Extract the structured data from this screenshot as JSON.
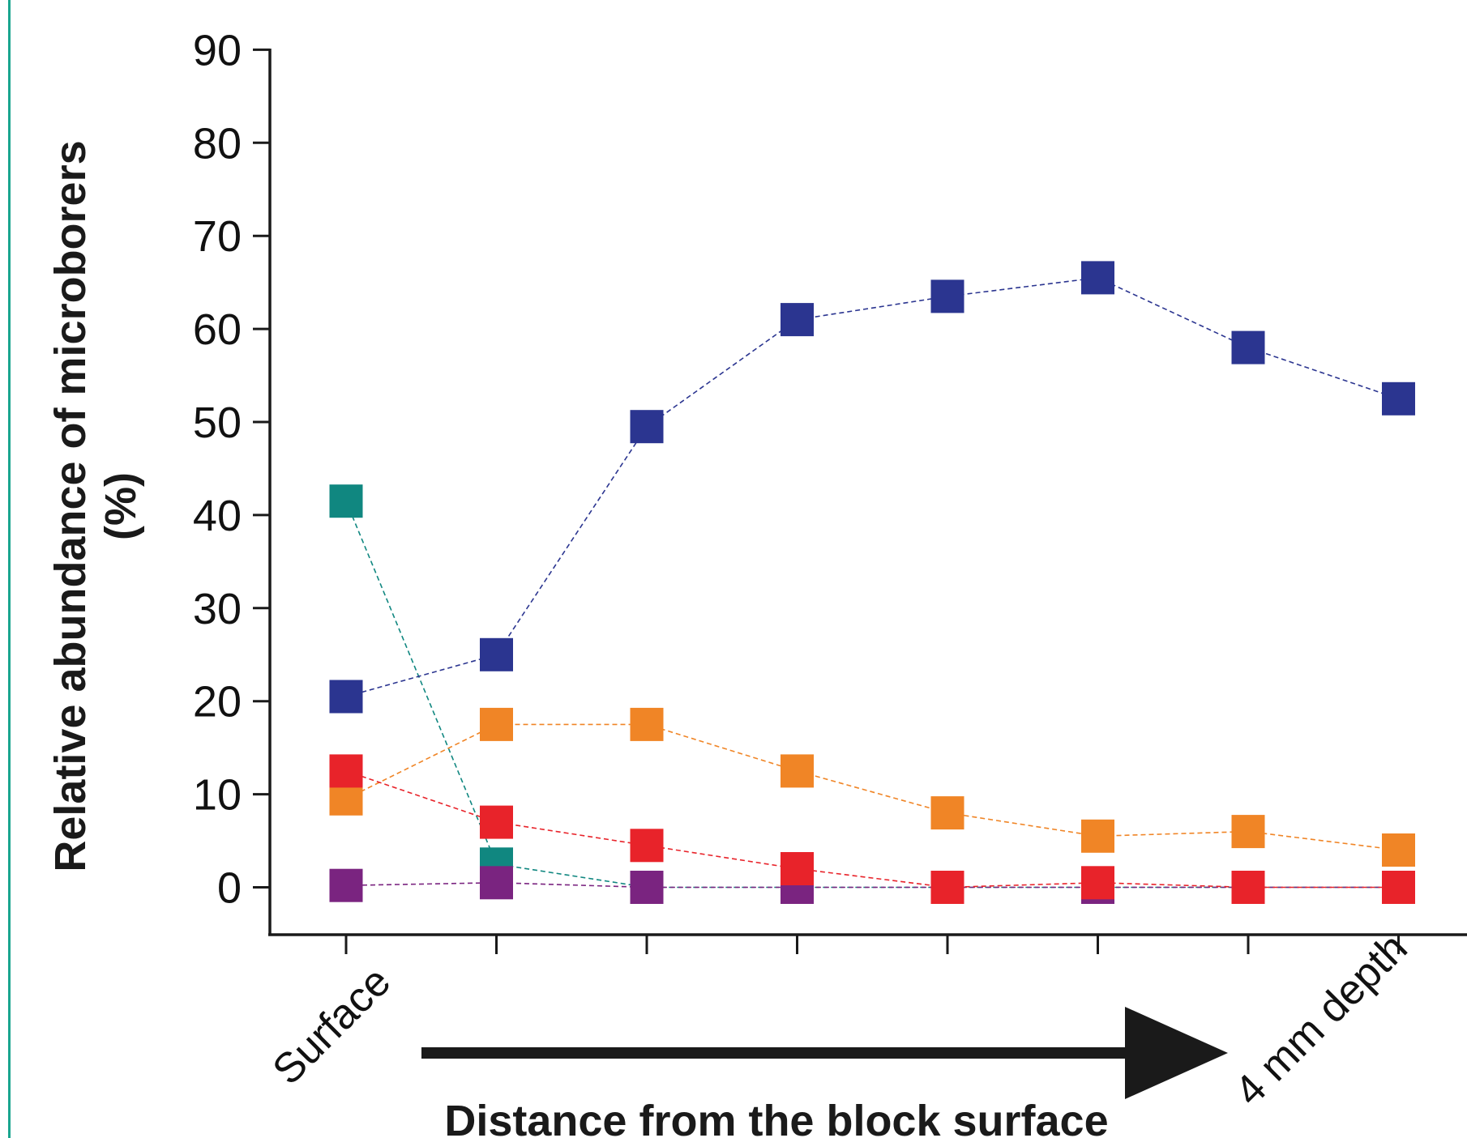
{
  "chart_data": {
    "type": "scatter",
    "x": [
      1,
      2,
      3,
      4,
      5,
      6,
      7,
      8
    ],
    "x_tick_labels": [
      "Surface",
      "",
      "",
      "",
      "",
      "",
      "",
      "4 mm depth"
    ],
    "xlabel": "Distance from the block surface",
    "ylabel": "Relative abundance of microborers (%)",
    "ylim": [
      -5,
      90
    ],
    "yticks": [
      0,
      10,
      20,
      30,
      40,
      50,
      60,
      70,
      80,
      90
    ],
    "grid": false,
    "arrow": "points right toward 4 mm depth",
    "series": [
      {
        "color": "#2b3590",
        "values": [
          20.5,
          25,
          49.5,
          61,
          63.5,
          65.5,
          58,
          52.5
        ]
      },
      {
        "color": "#108780",
        "values": [
          41.5,
          2.5,
          0,
          0,
          0,
          0,
          0,
          0
        ]
      },
      {
        "color": "#f08526",
        "values": [
          9.5,
          17.5,
          17.5,
          12.5,
          8,
          5.5,
          6,
          4
        ]
      },
      {
        "color": "#e8232a",
        "values": [
          12.5,
          7,
          4.5,
          2,
          0,
          0.5,
          0,
          0
        ]
      },
      {
        "color": "#7a2480",
        "values": [
          0.2,
          0.5,
          0,
          0,
          0,
          0,
          0,
          0
        ]
      }
    ],
    "draw_order": [
      1,
      0,
      2,
      4,
      3
    ]
  }
}
